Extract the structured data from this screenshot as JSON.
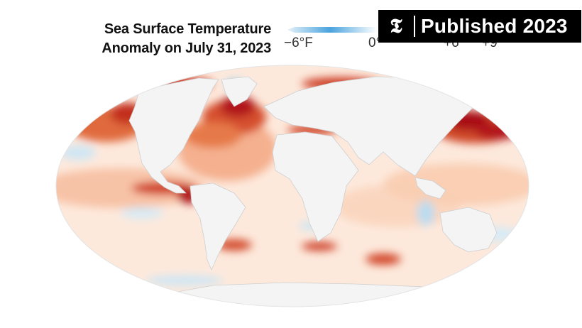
{
  "title_lines": [
    "Sea Surface Temperature",
    "Anomaly on July 31, 2023"
  ],
  "legend": {
    "ticks": [
      "−6°F",
      "0°",
      "+6°",
      "+9°"
    ],
    "colors": {
      "cold": "#4aa3dd",
      "neutral": "#ffffff",
      "warm_light": "#fbd9c0",
      "warm": "#e6733f",
      "hot": "#b5121b"
    }
  },
  "badge": {
    "logo": "𝕿",
    "text": "Published 2023"
  },
  "map": {
    "ocean_base": "#fde9dc",
    "land": "#f4f4f4",
    "border": "#cfcfcf"
  }
}
